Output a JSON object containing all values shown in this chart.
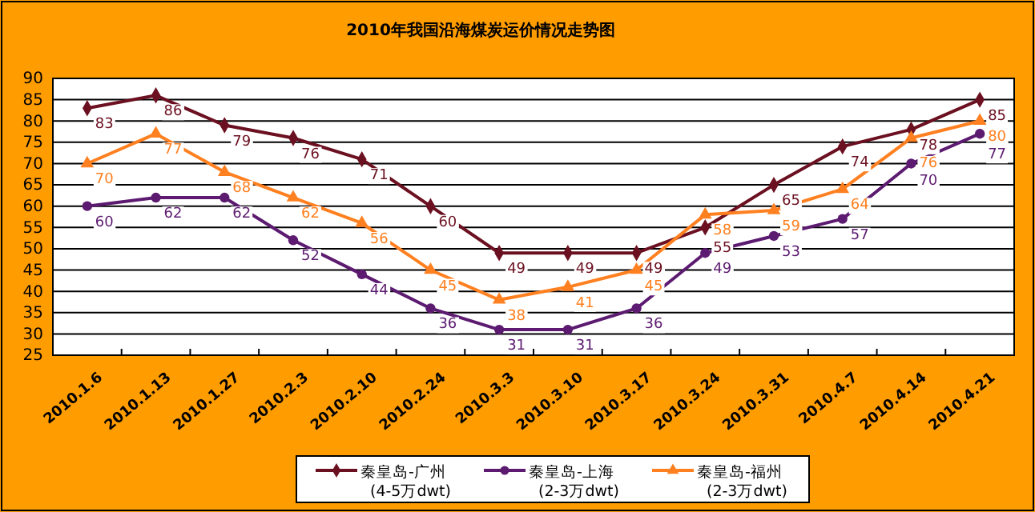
{
  "chart_data": {
    "type": "line",
    "title": "2010年我国沿海煤炭运价情况走势图",
    "categories": [
      "2010.1.6",
      "2010.1.13",
      "2010.1.27",
      "2010.2.3",
      "2010.2.10",
      "2010.2.24",
      "2010.3.3",
      "2010.3.10",
      "2010.3.17",
      "2010.3.24",
      "2010.3.31",
      "2010.4.7",
      "2010.4.14",
      "2010.4.21"
    ],
    "series": [
      {
        "name": "秦皇岛-广州\n(4-5万dwt)",
        "color": "#6b1020",
        "marker": "diamond",
        "values": [
          83,
          86,
          79,
          76,
          71,
          60,
          49,
          49,
          49,
          55,
          65,
          74,
          78,
          85
        ]
      },
      {
        "name": "秦皇岛-上海\n(2-3万dwt)",
        "color": "#5c1a70",
        "marker": "circle",
        "values": [
          60,
          62,
          62,
          52,
          44,
          36,
          31,
          31,
          36,
          49,
          53,
          57,
          70,
          77
        ]
      },
      {
        "name": "秦皇岛-福州\n(2-3万dwt)",
        "color": "#ff8020",
        "marker": "triangle",
        "values": [
          70,
          77,
          68,
          62,
          56,
          45,
          38,
          41,
          45,
          58,
          59,
          64,
          76,
          80
        ]
      }
    ],
    "ylim": [
      25,
      90
    ],
    "yticks": [
      25,
      30,
      35,
      40,
      45,
      50,
      55,
      60,
      65,
      70,
      75,
      80,
      85,
      90
    ],
    "grid": "y",
    "data_labels": true,
    "legend": "bottom"
  }
}
